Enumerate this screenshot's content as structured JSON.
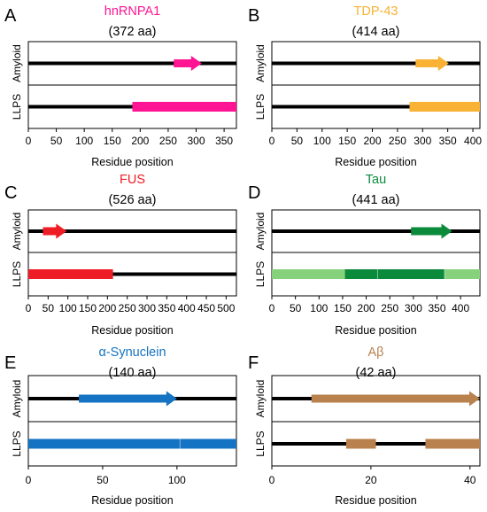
{
  "panels": [
    {
      "letter": "A",
      "protein": "hnRNPA1",
      "length_label": "(372 aa)",
      "color": "#ff1493",
      "light_color": null,
      "xmax": 372,
      "ticks": [
        0,
        50,
        100,
        150,
        200,
        250,
        300,
        350
      ],
      "xlabel": "Residue position",
      "row_labels": [
        "Amyloid",
        "LLPS"
      ],
      "amyloid": [
        {
          "start": 260,
          "end": 310
        }
      ],
      "llps": [
        {
          "start": 186,
          "end": 372,
          "shade": "main"
        }
      ],
      "llps_dividers": []
    },
    {
      "letter": "B",
      "protein": "TDP-43",
      "length_label": "(414 aa)",
      "color": "#f9b233",
      "light_color": null,
      "xmax": 414,
      "ticks": [
        0,
        50,
        100,
        150,
        200,
        250,
        300,
        350,
        400
      ],
      "xlabel": "Residue position",
      "row_labels": [
        "Amyloid",
        "LLPS"
      ],
      "amyloid": [
        {
          "start": 286,
          "end": 352
        }
      ],
      "llps": [
        {
          "start": 274,
          "end": 414,
          "shade": "main"
        }
      ],
      "llps_dividers": []
    },
    {
      "letter": "C",
      "protein": "FUS",
      "length_label": "(526 aa)",
      "color": "#ee1c24",
      "light_color": null,
      "xmax": 526,
      "ticks": [
        0,
        50,
        100,
        150,
        200,
        250,
        300,
        350,
        400,
        450,
        500
      ],
      "xlabel": "Residue position",
      "row_labels": [
        "Amyloid",
        "LLPS"
      ],
      "amyloid": [
        {
          "start": 37,
          "end": 97
        }
      ],
      "llps": [
        {
          "start": 0,
          "end": 214,
          "shade": "main"
        }
      ],
      "llps_dividers": []
    },
    {
      "letter": "D",
      "protein": "Tau",
      "length_label": "(441 aa)",
      "color": "#0b8a3c",
      "light_color": "#86d17c",
      "xmax": 441,
      "ticks": [
        0,
        50,
        100,
        150,
        200,
        250,
        300,
        350,
        400
      ],
      "xlabel": "Residue position",
      "row_labels": [
        "Amyloid",
        "LLPS"
      ],
      "amyloid": [
        {
          "start": 295,
          "end": 382
        }
      ],
      "llps": [
        {
          "start": 0,
          "end": 441,
          "shade": "light"
        },
        {
          "start": 155,
          "end": 366,
          "shade": "main"
        }
      ],
      "llps_dividers": [
        224,
        366
      ]
    },
    {
      "letter": "E",
      "protein": "α-Synuclein",
      "length_label": "(140 aa)",
      "color": "#1473c2",
      "light_color": null,
      "xmax": 140,
      "ticks": [
        0,
        50,
        100
      ],
      "xlabel": "Residue position",
      "row_labels": [
        "Amyloid",
        "LLPS"
      ],
      "amyloid": [
        {
          "start": 34,
          "end": 100
        }
      ],
      "llps": [
        {
          "start": 0,
          "end": 140,
          "shade": "main"
        }
      ],
      "llps_dividers": [
        102
      ]
    },
    {
      "letter": "F",
      "protein": "Aβ",
      "length_label": "(42 aa)",
      "color": "#b8814e",
      "light_color": null,
      "xmax": 42,
      "ticks": [
        0,
        20,
        40
      ],
      "xlabel": "Residue position",
      "row_labels": [
        "Amyloid",
        "LLPS"
      ],
      "amyloid": [
        {
          "start": 8,
          "end": 42
        }
      ],
      "llps": [
        {
          "start": 15,
          "end": 21,
          "shade": "main"
        },
        {
          "start": 31,
          "end": 42,
          "shade": "main"
        }
      ],
      "llps_dividers": []
    }
  ]
}
